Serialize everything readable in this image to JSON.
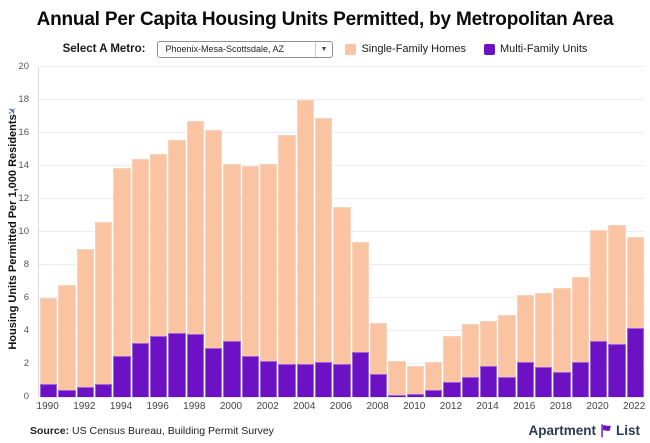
{
  "title": "Annual Per Capita Housing Units Permitted, by Metropolitan Area",
  "controls": {
    "metro_label": "Select A Metro:",
    "metro_value": "Phoenix-Mesa-Scottsdale, AZ"
  },
  "legend": [
    {
      "label": "Single-Family Homes",
      "color": "#FAC3A1"
    },
    {
      "label": "Multi-Family Units",
      "color": "#6C11C4"
    }
  ],
  "icons": {
    "dropdown_arrow": "▼",
    "plane": "✈",
    "logo_flag": "flag-icon"
  },
  "colors": {
    "single_family": "#FAC3A1",
    "multi_family": "#6C11C4",
    "gridline": "#ececf2",
    "logo_navy": "#2A3A55",
    "logo_purple": "#6C11C4"
  },
  "chart_data": {
    "type": "bar",
    "stacked": true,
    "stack_bottom": "Multi-Family Units",
    "title": "Annual Per Capita Housing Units Permitted, by Metropolitan Area",
    "xlabel": "",
    "ylabel": "Housing Units Permitted Per 1,000 Residents",
    "ylim": [
      0,
      20
    ],
    "yticks": [
      0,
      2,
      4,
      6,
      8,
      10,
      12,
      14,
      16,
      18,
      20
    ],
    "grid": true,
    "legend_position": "top",
    "categories": [
      1990,
      1991,
      1992,
      1993,
      1994,
      1995,
      1996,
      1997,
      1998,
      1999,
      2000,
      2001,
      2002,
      2003,
      2004,
      2005,
      2006,
      2007,
      2008,
      2009,
      2010,
      2011,
      2012,
      2013,
      2014,
      2015,
      2016,
      2017,
      2018,
      2019,
      2020,
      2021,
      2022
    ],
    "series": [
      {
        "name": "Single-Family Homes",
        "color": "#FAC3A1",
        "values": [
          5.2,
          6.4,
          8.4,
          9.8,
          11.4,
          11.1,
          11.0,
          11.7,
          12.9,
          13.2,
          10.7,
          11.5,
          11.9,
          13.9,
          16.0,
          14.8,
          9.5,
          6.7,
          3.1,
          2.1,
          1.7,
          1.7,
          2.8,
          3.2,
          2.7,
          3.8,
          4.1,
          4.5,
          5.1,
          5.2,
          6.7,
          7.2,
          5.5
        ]
      },
      {
        "name": "Multi-Family Units",
        "color": "#6C11C4",
        "values": [
          0.8,
          0.4,
          0.6,
          0.8,
          2.5,
          3.3,
          3.7,
          3.9,
          3.8,
          3.0,
          3.4,
          2.5,
          2.2,
          2.0,
          2.0,
          2.1,
          2.0,
          2.7,
          1.4,
          0.1,
          0.2,
          0.4,
          0.9,
          1.2,
          1.9,
          1.2,
          2.1,
          1.8,
          1.5,
          2.1,
          3.4,
          3.2,
          4.2
        ]
      }
    ],
    "totals": [
      6.0,
      6.8,
      9.0,
      10.6,
      13.9,
      14.4,
      14.7,
      15.6,
      16.7,
      16.2,
      14.1,
      14.0,
      14.1,
      15.9,
      18.0,
      16.9,
      11.5,
      9.4,
      4.5,
      2.2,
      1.9,
      2.1,
      3.7,
      4.4,
      4.6,
      5.0,
      6.2,
      6.3,
      6.6,
      7.3,
      10.1,
      10.4,
      9.7
    ]
  },
  "footer": {
    "source_bold": "Source:",
    "source_rest": " US Census Bureau, Building Permit Survey",
    "logo_left": "Apartment",
    "logo_right": "List"
  }
}
